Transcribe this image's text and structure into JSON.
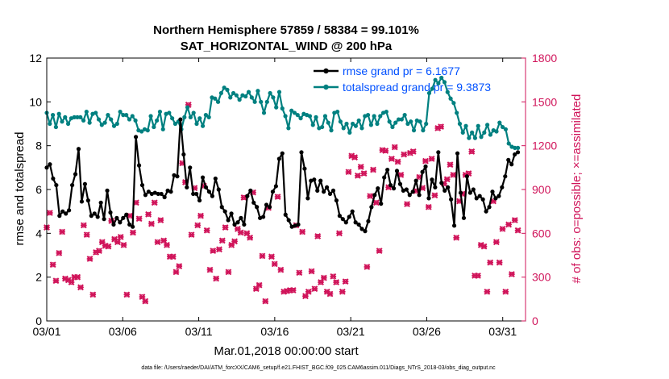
{
  "chart_data": {
    "type": "line",
    "title": "Northern Hemisphere 57859 / 58384 = 99.101%",
    "subtitle": "SAT_HORIZONTAL_WIND @ 200 hPa",
    "xlabel": "Mar.01,2018 00:00:00 start",
    "ylabel": "rmse and totalspread",
    "y2label": "# of obs: o=possible; ×=assimilated",
    "footnote": "data file: /Users/raeder/DAI/ATM_forcXX/CAM6_setup/f.e21.FHIST_BGC.f09_025.CAM6assim.011/Diags_NTrS_2018-03/obs_diag_output.nc",
    "xlim": [
      0,
      31.5
    ],
    "ylim": [
      0,
      12
    ],
    "y2lim": [
      0,
      1800
    ],
    "grid": false,
    "legend_position": "top-right",
    "x_ticks": [
      {
        "value": 0,
        "label": "03/01"
      },
      {
        "value": 5,
        "label": "03/06"
      },
      {
        "value": 10,
        "label": "03/11"
      },
      {
        "value": 15,
        "label": "03/16"
      },
      {
        "value": 20,
        "label": "03/21"
      },
      {
        "value": 25,
        "label": "03/26"
      },
      {
        "value": 30,
        "label": "03/31"
      }
    ],
    "y_ticks": [
      0,
      2,
      4,
      6,
      8,
      10,
      12
    ],
    "y2_ticks": [
      0,
      300,
      600,
      900,
      1200,
      1500,
      1800
    ],
    "colors": {
      "rmse": "#000000",
      "totalspread": "#008080",
      "obs": "#d0145a",
      "legend_text": "#0050ff",
      "title": "#000000"
    },
    "series": [
      {
        "name": "rmse grand pr = 6.1677",
        "axis": "left",
        "values": [
          7.0,
          7.15,
          6.5,
          6.2,
          4.8,
          5.0,
          4.9,
          5.05,
          6.2,
          6.7,
          7.85,
          5.45,
          6.25,
          5.5,
          4.8,
          4.9,
          4.75,
          5.4,
          4.65,
          5.95,
          4.95,
          4.4,
          4.7,
          4.5,
          4.7,
          4.85,
          4.4,
          4.3,
          8.4,
          7.1,
          6.2,
          5.75,
          5.9,
          5.8,
          5.85,
          5.8,
          5.8,
          5.65,
          5.95,
          5.9,
          6.65,
          6.6,
          9.2,
          7.6,
          6.1,
          7.0,
          5.8,
          5.8,
          5.5,
          6.55,
          6.1,
          5.9,
          5.7,
          6.5,
          6.0,
          5.2,
          5.0,
          4.6,
          4.9,
          4.4,
          4.5,
          4.7,
          4.4,
          5.7,
          5.95,
          5.4,
          5.2,
          4.7,
          4.75,
          5.3,
          5.2,
          5.9,
          6.15,
          7.4,
          7.65,
          4.85,
          4.6,
          4.3,
          4.35,
          4.4,
          7.7,
          6.95,
          5.6,
          6.4,
          6.45,
          5.95,
          6.4,
          5.9,
          6.1,
          5.8,
          5.95,
          5.5,
          4.8,
          4.65,
          4.5,
          4.75,
          5.0,
          4.5,
          4.4,
          4.2,
          4.1,
          4.55,
          5.2,
          5.75,
          6.05,
          5.35,
          6.55,
          6.9,
          6.2,
          6.05,
          6.85,
          6.25,
          5.95,
          6.0,
          5.75,
          5.9,
          6.4,
          5.75,
          6.8,
          7.05,
          5.6,
          6.45,
          6.1,
          7.7,
          6.3,
          5.95,
          6.1,
          5.55,
          4.35,
          7.65,
          5.85,
          4.7,
          6.6,
          5.85,
          6.0,
          5.6,
          5.7,
          5.55,
          5.0,
          5.2,
          5.9,
          5.6,
          5.7,
          6.1,
          6.6,
          7.35,
          7.15,
          7.6,
          7.7
        ]
      },
      {
        "name": "totalspread grand pr = 9.3873",
        "axis": "left",
        "values": [
          9.5,
          9.0,
          9.4,
          8.85,
          9.45,
          9.1,
          9.3,
          9.0,
          9.25,
          9.3,
          9.3,
          9.3,
          9.15,
          9.55,
          9.05,
          9.45,
          9.5,
          9.2,
          8.95,
          9.05,
          9.4,
          9.2,
          8.9,
          9.0,
          9.55,
          9.4,
          9.4,
          9.2,
          9.35,
          9.15,
          8.7,
          8.65,
          8.75,
          8.7,
          9.35,
          8.85,
          9.15,
          9.55,
          8.75,
          9.45,
          9.5,
          9.25,
          9.0,
          9.1,
          8.75,
          9.3,
          9.75,
          9.3,
          9.5,
          9.0,
          9.25,
          8.9,
          9.4,
          9.3,
          10.2,
          10.15,
          10.0,
          10.4,
          10.65,
          10.55,
          10.2,
          10.4,
          10.3,
          10.1,
          10.3,
          10.25,
          10.45,
          10.2,
          10.0,
          10.5,
          10.0,
          9.5,
          10.0,
          10.4,
          10.2,
          9.75,
          10.45,
          9.7,
          9.35,
          8.8,
          9.6,
          9.5,
          9.4,
          9.25,
          9.45,
          9.4,
          9.35,
          8.95,
          9.3,
          8.8,
          8.85,
          9.35,
          9.05,
          8.7,
          9.5,
          9.55,
          9.1,
          8.8,
          9.0,
          8.6,
          9.0,
          8.9,
          9.15,
          8.8,
          9.35,
          9.4,
          8.95,
          9.35,
          9.0,
          9.35,
          9.5,
          9.55,
          9.1,
          8.85,
          9.05,
          9.2,
          9.2,
          9.4,
          9.0,
          9.1,
          8.7,
          9.15,
          9.1,
          8.7,
          9.0,
          10.4,
          10.6,
          11.0,
          10.85,
          11.1,
          10.9,
          10.45,
          10.15,
          9.95,
          9.5,
          9.0,
          8.6,
          8.9,
          8.35,
          8.6,
          8.35,
          8.9,
          8.4,
          8.6,
          8.95,
          8.5,
          8.7,
          8.65,
          9.05,
          8.85,
          8.75,
          8.1,
          7.95,
          7.9,
          7.9
        ]
      },
      {
        "name": "obs possible",
        "axis": "right",
        "values": [
          640,
          740,
          385,
          275,
          465,
          610,
          290,
          280,
          265,
          300,
          300,
          230,
          655,
          590,
          425,
          180,
          470,
          480,
          540,
          515,
          510,
          685,
          560,
          540,
          575,
          520,
          180,
          720,
          605,
          810,
          700,
          165,
          135,
          730,
          665,
          810,
          540,
          690,
          550,
          520,
          440,
          440,
          335,
          375,
          1080,
          950,
          1480,
          590,
          910,
          655,
          720,
          925,
          620,
          350,
          480,
          290,
          490,
          550,
          640,
          335,
          520,
          545,
          630,
          605,
          845,
          600,
          570,
          880,
          220,
          245,
          445,
          135,
          775,
          440,
          390,
          850,
          350,
          200,
          205,
          210,
          210,
          655,
          330,
          610,
          170,
          200,
          340,
          220,
          580,
          265,
          295,
          200,
          185,
          305,
          265,
          600,
          200,
          270,
          1020,
          1130,
          1120,
          995,
          1055,
          1010,
          370,
          855,
          1035,
          810,
          480,
          1170,
          1165,
          915,
          1110,
          1190,
          1090,
          1000,
          1140,
          800,
          1150,
          1160,
          890,
          985,
          910,
          1095,
          780,
          1110,
          860,
          1320,
          1330,
          940,
          970,
          1070,
          1000,
          570,
          820,
          870,
          1000,
          1010,
          1160,
          310,
          310,
          520,
          510,
          200,
          400,
          820,
          540,
          400,
          630,
          200,
          660,
          320,
          690,
          620
        ]
      },
      {
        "name": "obs assimilated",
        "axis": "right",
        "values": [
          640,
          740,
          385,
          275,
          465,
          610,
          290,
          280,
          265,
          300,
          300,
          230,
          655,
          590,
          425,
          180,
          470,
          480,
          540,
          515,
          510,
          685,
          560,
          540,
          575,
          520,
          180,
          720,
          605,
          810,
          700,
          165,
          135,
          730,
          665,
          810,
          540,
          690,
          550,
          520,
          440,
          440,
          335,
          375,
          1080,
          950,
          1480,
          590,
          910,
          655,
          720,
          925,
          620,
          350,
          480,
          290,
          490,
          550,
          640,
          335,
          520,
          545,
          630,
          605,
          845,
          600,
          570,
          880,
          220,
          245,
          445,
          135,
          775,
          440,
          390,
          850,
          350,
          200,
          205,
          210,
          210,
          655,
          330,
          610,
          170,
          200,
          340,
          220,
          580,
          265,
          295,
          200,
          185,
          305,
          265,
          600,
          200,
          270,
          1020,
          1130,
          1120,
          995,
          1055,
          1010,
          370,
          855,
          1035,
          810,
          480,
          1170,
          1165,
          915,
          1110,
          1190,
          1090,
          1000,
          1140,
          800,
          1150,
          1160,
          890,
          985,
          910,
          1095,
          780,
          1110,
          860,
          1320,
          1330,
          940,
          970,
          1070,
          1000,
          570,
          820,
          870,
          1000,
          1010,
          1160,
          310,
          310,
          520,
          510,
          200,
          400,
          820,
          540,
          400,
          630,
          200,
          660,
          320,
          690,
          620
        ]
      }
    ]
  }
}
